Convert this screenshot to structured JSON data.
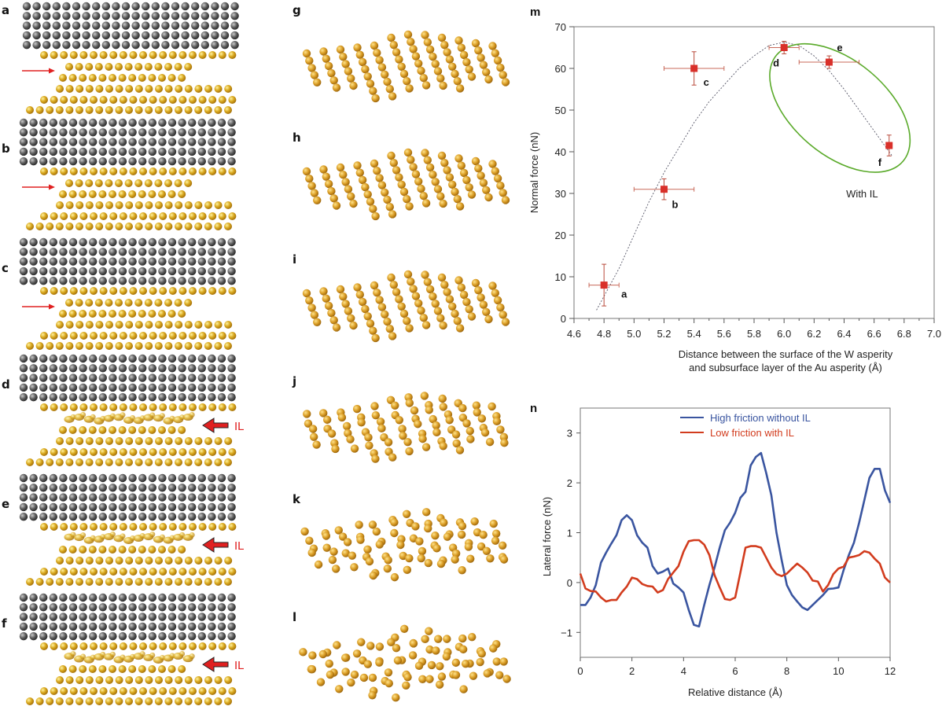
{
  "panels": {
    "left_column": [
      {
        "letter": "a",
        "marker": "arrow",
        "marker_label": ""
      },
      {
        "letter": "b",
        "marker": "arrow",
        "marker_label": ""
      },
      {
        "letter": "c",
        "marker": "arrow",
        "marker_label": ""
      },
      {
        "letter": "d",
        "marker": "IL-arrow",
        "marker_label": "IL"
      },
      {
        "letter": "e",
        "marker": "IL-arrow",
        "marker_label": "IL"
      },
      {
        "letter": "f",
        "marker": "IL-arrow",
        "marker_label": "IL"
      }
    ],
    "middle_column": [
      {
        "letter": "g"
      },
      {
        "letter": "h"
      },
      {
        "letter": "i"
      },
      {
        "letter": "j"
      },
      {
        "letter": "k"
      },
      {
        "letter": "l"
      }
    ]
  },
  "colors": {
    "w_atom": "#5a5a5a",
    "au_atom": "#d9a81e",
    "red_arrow": "#e02020",
    "point_red": "#d9302a",
    "green_ellipse": "#5aaa2a",
    "blue_line": "#3a55a0",
    "red_line": "#d23c1e"
  },
  "chart_data": [
    {
      "id": "m",
      "panel_letter": "m",
      "type": "scatter",
      "title": "",
      "xlabel_line1": "Distance between the surface of the W asperity",
      "xlabel_line2": "and subsurface layer of the Au asperity (Å)",
      "ylabel": "Normal force (nN)",
      "xlim": [
        4.6,
        7.0
      ],
      "ylim": [
        0,
        70
      ],
      "xticks": [
        4.6,
        4.8,
        5.0,
        5.2,
        5.4,
        5.6,
        5.8,
        6.0,
        6.2,
        6.4,
        6.6,
        6.8,
        7.0
      ],
      "xtick_labels": [
        "4.6",
        "4.8",
        "5.0",
        "5.2",
        "5.4",
        "5.6",
        "5.8",
        "6.0",
        "6.2",
        "6.4",
        "6.6",
        "6.8",
        "7.0"
      ],
      "yticks": [
        0,
        10,
        20,
        30,
        40,
        50,
        60,
        70
      ],
      "ytick_labels": [
        "0",
        "10",
        "20",
        "30",
        "40",
        "50",
        "60",
        "70"
      ],
      "grid": false,
      "points": [
        {
          "label": "a",
          "x": 4.8,
          "y": 8,
          "xerr": 0.1,
          "yerr_low": 5,
          "yerr_high": 5
        },
        {
          "label": "b",
          "x": 5.2,
          "y": 31,
          "xerr": 0.2,
          "yerr_low": 2.5,
          "yerr_high": 2.5
        },
        {
          "label": "c",
          "x": 5.4,
          "y": 60,
          "xerr": 0.2,
          "yerr_low": 4,
          "yerr_high": 4
        },
        {
          "label": "d",
          "x": 6.0,
          "y": 65,
          "xerr": 0.1,
          "yerr_low": 1.5,
          "yerr_high": 1.5
        },
        {
          "label": "e",
          "x": 6.3,
          "y": 61.5,
          "xerr": 0.2,
          "yerr_low": 1.5,
          "yerr_high": 1.5
        },
        {
          "label": "f",
          "x": 6.7,
          "y": 41.5,
          "xerr": 0,
          "yerr_low": 2.5,
          "yerr_high": 2.5
        }
      ],
      "fit_curve": {
        "style": "dotted",
        "x": [
          4.75,
          4.9,
          5.0,
          5.1,
          5.2,
          5.3,
          5.4,
          5.5,
          5.6,
          5.7,
          5.8,
          5.9,
          6.0,
          6.1,
          6.2,
          6.3,
          6.4,
          6.5,
          6.6,
          6.72
        ],
        "y": [
          2,
          12,
          20,
          28,
          35,
          41,
          47,
          52,
          56,
          60,
          63,
          65.5,
          66.3,
          65.5,
          63,
          59.5,
          55,
          50,
          45,
          39
        ]
      },
      "annotation": {
        "text": "With IL",
        "x": 6.52,
        "y": 30
      },
      "highlight_ellipse": {
        "cx": 6.33,
        "cy": 52,
        "rx_data": 0.48,
        "ry_data": 14,
        "rotation_deg": 40
      }
    },
    {
      "id": "n",
      "panel_letter": "n",
      "type": "line",
      "title": "",
      "xlabel": "Relative distance (Å)",
      "ylabel": "Lateral force (nN)",
      "xlim": [
        0,
        12
      ],
      "ylim": [
        -1.5,
        3.5
      ],
      "xticks": [
        0,
        2,
        4,
        6,
        8,
        10,
        12
      ],
      "xtick_labels": [
        "0",
        "2",
        "4",
        "6",
        "8",
        "10",
        "12"
      ],
      "yticks": [
        -1,
        0,
        1,
        2,
        3
      ],
      "ytick_labels": [
        "−1",
        "0",
        "1",
        "2",
        "3"
      ],
      "grid": false,
      "legend_position": "top-center",
      "series": [
        {
          "name": "High friction without IL",
          "color": "#3a55a0",
          "x": [
            0,
            0.2,
            0.4,
            0.6,
            0.8,
            1.0,
            1.2,
            1.4,
            1.6,
            1.8,
            2.0,
            2.2,
            2.4,
            2.6,
            2.8,
            3.0,
            3.2,
            3.4,
            3.6,
            3.8,
            4.0,
            4.2,
            4.4,
            4.6,
            4.8,
            5.0,
            5.2,
            5.4,
            5.6,
            5.8,
            6.0,
            6.2,
            6.4,
            6.6,
            6.8,
            7.0,
            7.2,
            7.4,
            7.6,
            7.8,
            8.0,
            8.2,
            8.4,
            8.6,
            8.8,
            9.0,
            9.2,
            9.4,
            9.6,
            9.8,
            10.0,
            10.2,
            10.4,
            10.6,
            10.8,
            11.0,
            11.2,
            11.4,
            11.6,
            11.8,
            12.0
          ],
          "y": [
            -0.45,
            -0.45,
            -0.3,
            -0.05,
            0.4,
            0.6,
            0.78,
            0.95,
            1.25,
            1.35,
            1.25,
            0.95,
            0.8,
            0.7,
            0.33,
            0.18,
            0.22,
            0.28,
            -0.02,
            -0.1,
            -0.2,
            -0.55,
            -0.85,
            -0.88,
            -0.45,
            -0.05,
            0.3,
            0.7,
            1.05,
            1.2,
            1.4,
            1.7,
            1.82,
            2.35,
            2.52,
            2.6,
            2.2,
            1.75,
            1.0,
            0.45,
            -0.05,
            -0.25,
            -0.38,
            -0.5,
            -0.55,
            -0.45,
            -0.35,
            -0.25,
            -0.13,
            -0.12,
            -0.1,
            0.25,
            0.55,
            0.8,
            1.2,
            1.65,
            2.1,
            2.28,
            2.28,
            1.85,
            1.6
          ]
        },
        {
          "name": "Low friction with IL",
          "color": "#d23c1e",
          "x": [
            0,
            0.2,
            0.4,
            0.6,
            0.8,
            1.0,
            1.2,
            1.4,
            1.6,
            1.8,
            2.0,
            2.2,
            2.4,
            2.6,
            2.8,
            3.0,
            3.2,
            3.4,
            3.6,
            3.8,
            4.0,
            4.2,
            4.4,
            4.6,
            4.8,
            5.0,
            5.2,
            5.4,
            5.6,
            5.8,
            6.0,
            6.2,
            6.4,
            6.6,
            6.8,
            7.0,
            7.2,
            7.4,
            7.6,
            7.8,
            8.0,
            8.2,
            8.4,
            8.6,
            8.8,
            9.0,
            9.2,
            9.4,
            9.6,
            9.8,
            10.0,
            10.2,
            10.4,
            10.6,
            10.8,
            11.0,
            11.2,
            11.4,
            11.6,
            11.8,
            12.0
          ],
          "y": [
            0.18,
            -0.12,
            -0.17,
            -0.18,
            -0.3,
            -0.38,
            -0.35,
            -0.35,
            -0.2,
            -0.08,
            0.1,
            0.07,
            -0.03,
            -0.07,
            -0.08,
            -0.2,
            -0.15,
            0.07,
            0.2,
            0.33,
            0.62,
            0.83,
            0.85,
            0.85,
            0.76,
            0.55,
            0.15,
            -0.1,
            -0.33,
            -0.35,
            -0.3,
            0.2,
            0.7,
            0.73,
            0.73,
            0.7,
            0.5,
            0.3,
            0.17,
            0.13,
            0.18,
            0.28,
            0.38,
            0.3,
            0.2,
            0.04,
            0.02,
            -0.18,
            -0.05,
            0.17,
            0.28,
            0.32,
            0.5,
            0.52,
            0.55,
            0.63,
            0.6,
            0.48,
            0.38,
            0.1,
            0.0
          ]
        }
      ]
    }
  ]
}
